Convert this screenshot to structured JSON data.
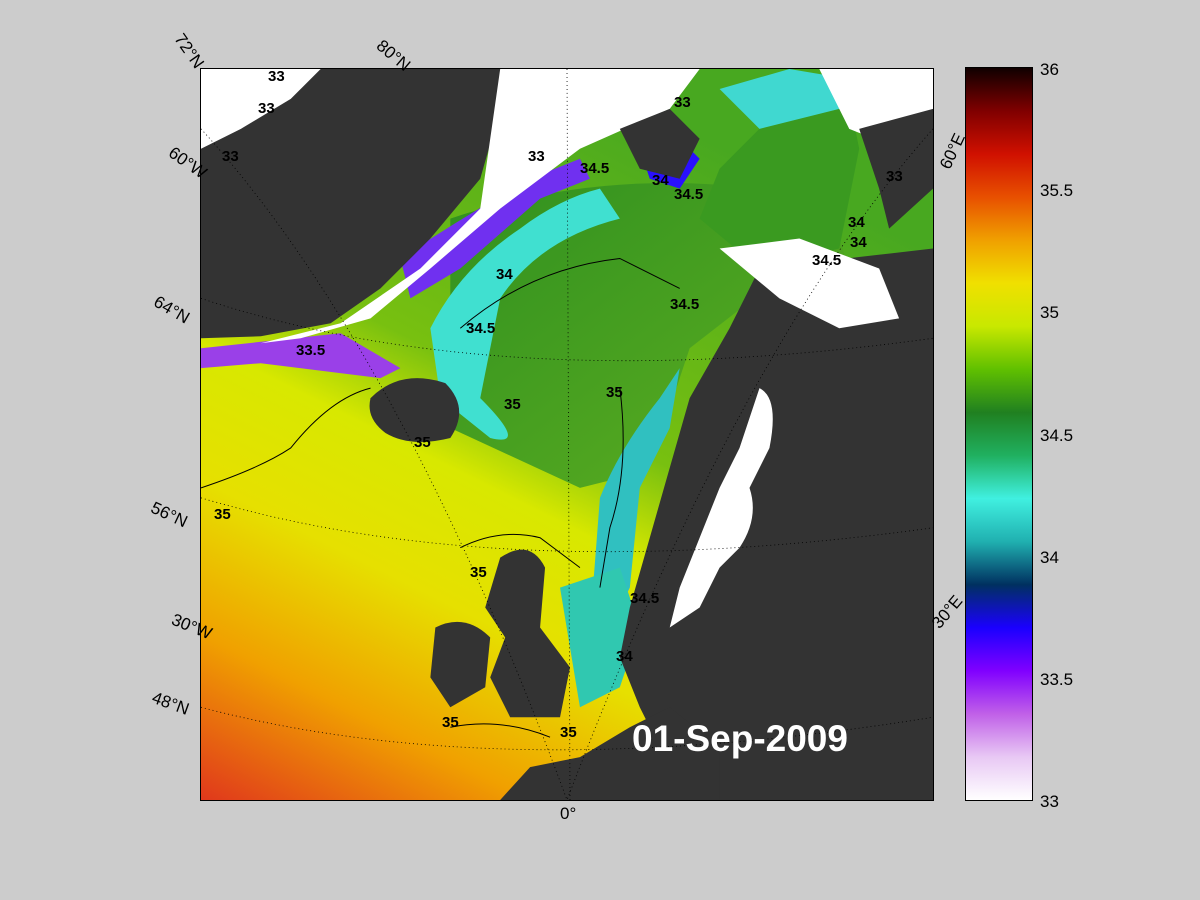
{
  "date": "01-Sep-2009",
  "map": {
    "lat_labels": [
      "72°N",
      "80°N",
      "60°N",
      "64°N",
      "56°N",
      "48°N"
    ],
    "lon_labels": [
      "60°W",
      "30°W",
      "0°",
      "30°E",
      "60°E"
    ],
    "contour_labels": [
      "33",
      "33",
      "33",
      "33",
      "33",
      "34",
      "34",
      "34",
      "34",
      "34",
      "34.5",
      "34.5",
      "34.5",
      "34.5",
      "34.5",
      "34.5",
      "35",
      "35",
      "35",
      "35",
      "35",
      "35",
      "35",
      "35",
      "33.5",
      "34.5",
      "35",
      "33",
      "33",
      "34.5",
      "34",
      "33"
    ]
  },
  "colorbar": {
    "ticks": [
      "36",
      "35.5",
      "35",
      "34.5",
      "34",
      "33.5",
      "33"
    ],
    "stops": [
      "#ffffff",
      "#e8c8f4",
      "#c060e8",
      "#8000ff",
      "#1a00ff",
      "#003060",
      "#20b0b0",
      "#40f0e0",
      "#20b060",
      "#208020",
      "#60c000",
      "#c8e800",
      "#f0e000",
      "#f0a000",
      "#e85000",
      "#d01000",
      "#800000",
      "#100000"
    ]
  }
}
